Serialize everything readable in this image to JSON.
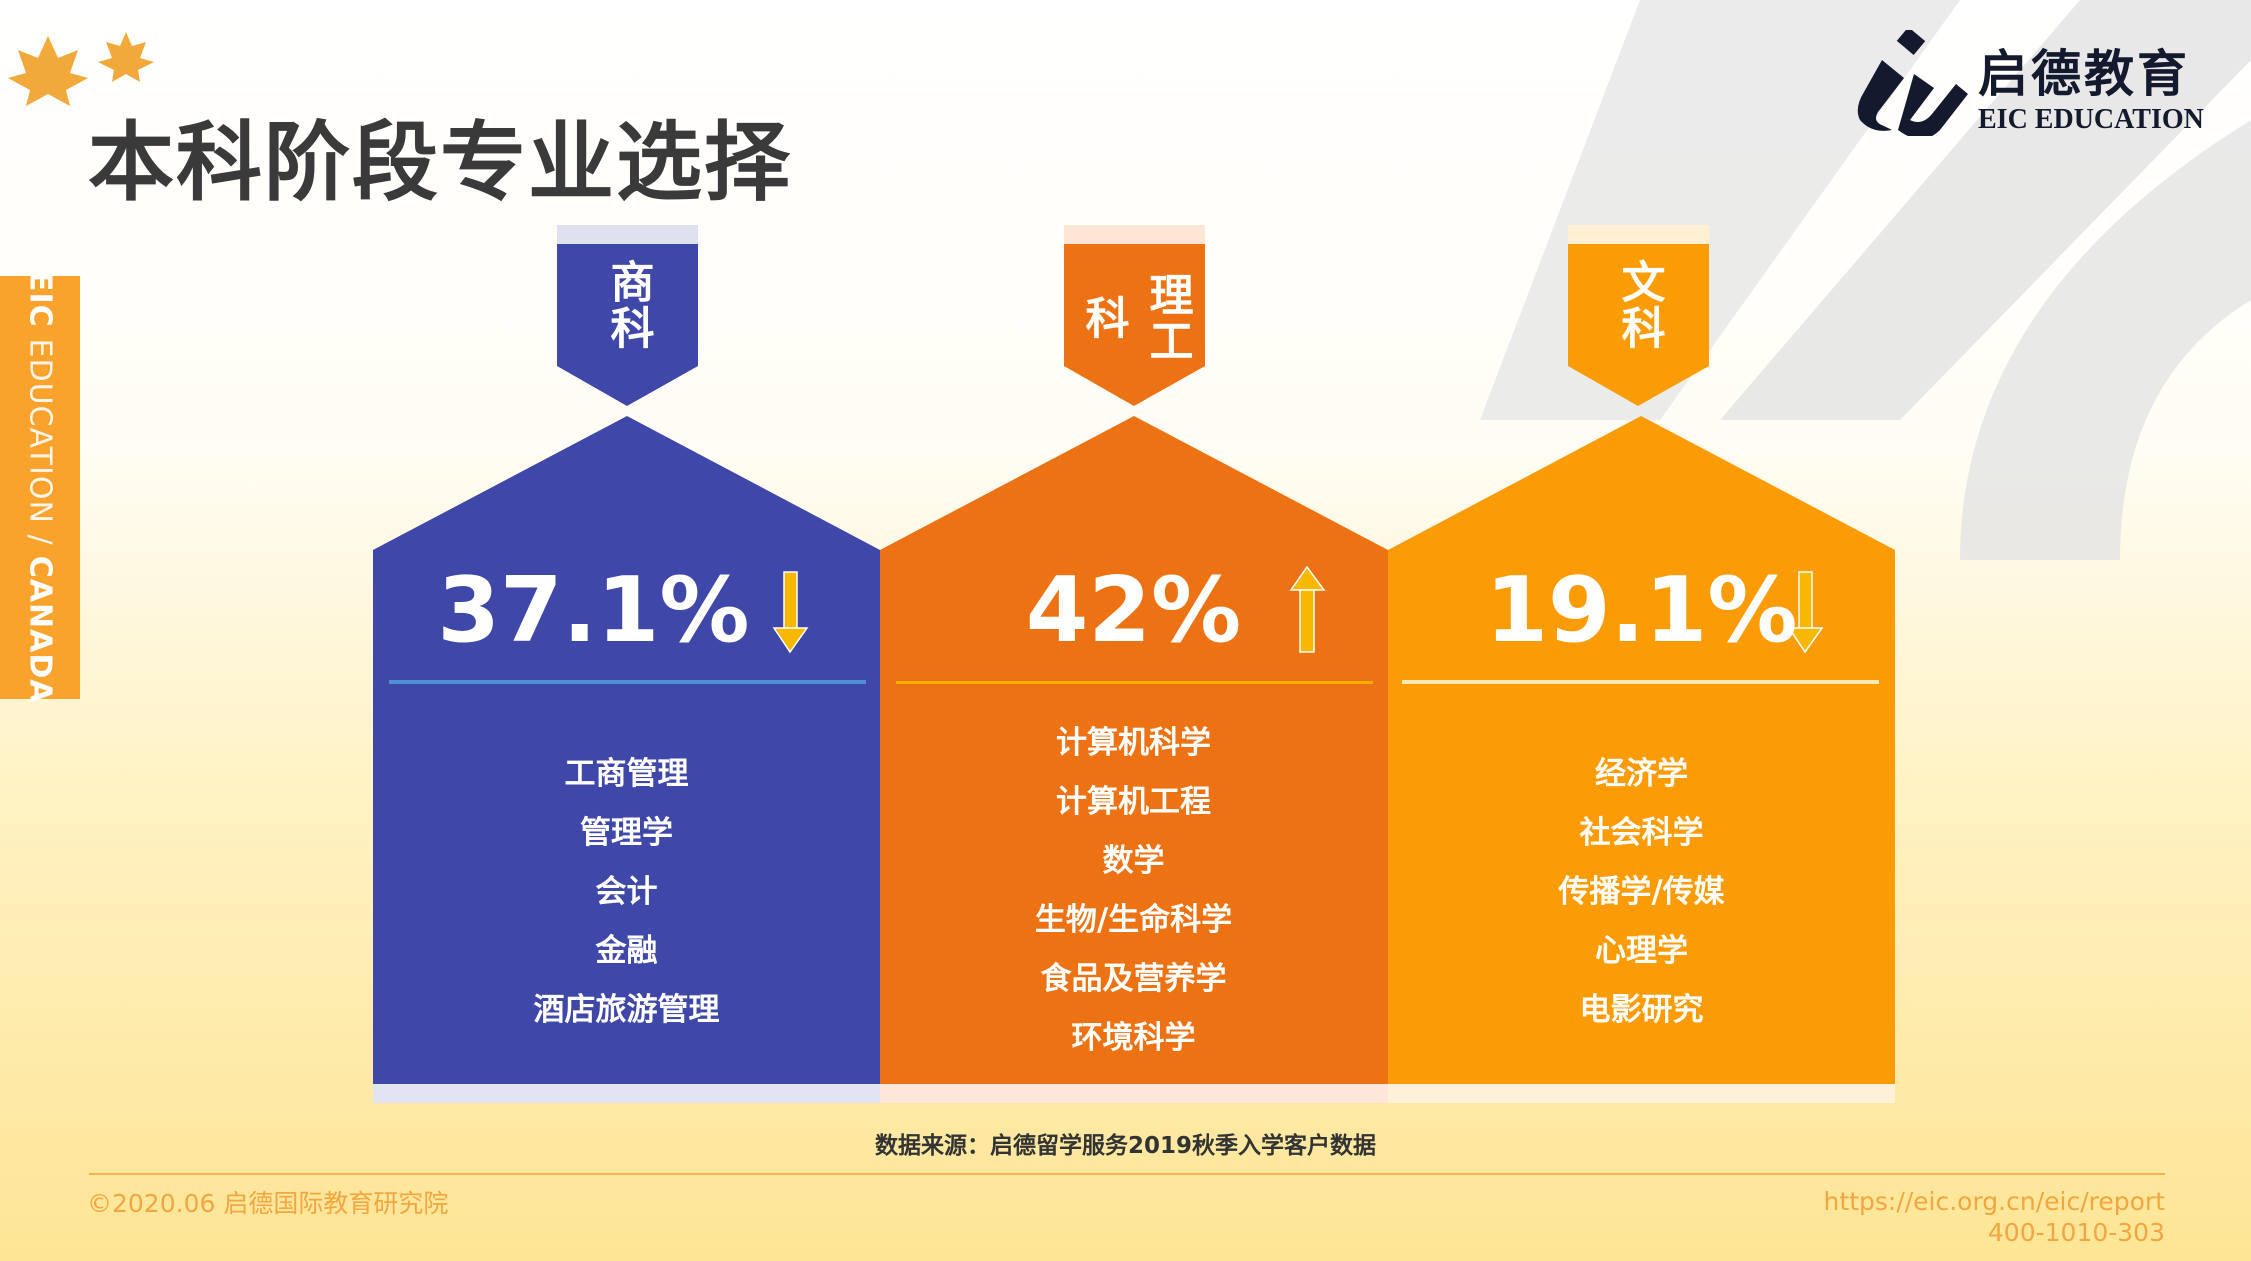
{
  "title": "本科阶段专业选择",
  "side_tab": {
    "bold1": "EIC",
    "light": " EDUCATION / ",
    "bold2": "CANADA"
  },
  "logo": {
    "cn": "启德教育",
    "en": "EIC EDUCATION"
  },
  "colors": {
    "business": "#3f48a8",
    "engineering": "#ec7214",
    "arts": "#fb9c06",
    "arrow": "#f8b800"
  },
  "panels": [
    {
      "label": "商科",
      "percent": "37.1%",
      "trend": "down",
      "trend_icon": "arrow-down-icon",
      "majors": [
        "工商管理",
        "管理学",
        "会计",
        "金融",
        "酒店旅游管理"
      ]
    },
    {
      "label": "理工科",
      "percent": "42%",
      "trend": "up",
      "trend_icon": "arrow-up-icon",
      "majors": [
        "计算机科学",
        "计算机工程",
        "数学",
        "生物/生命科学",
        "食品及营养学",
        "环境科学"
      ]
    },
    {
      "label": "文科",
      "percent": "19.1%",
      "trend": "down",
      "trend_icon": "arrow-down-icon",
      "majors": [
        "经济学",
        "社会科学",
        "传播学/传媒",
        "心理学",
        "电影研究"
      ]
    }
  ],
  "source": "数据来源：启德留学服务2019秋季入学客户数据",
  "footer": {
    "copyright": "©2020.06 启德国际教育研究院",
    "url": "https://eic.org.cn/eic/report",
    "phone": "400-1010-303"
  }
}
